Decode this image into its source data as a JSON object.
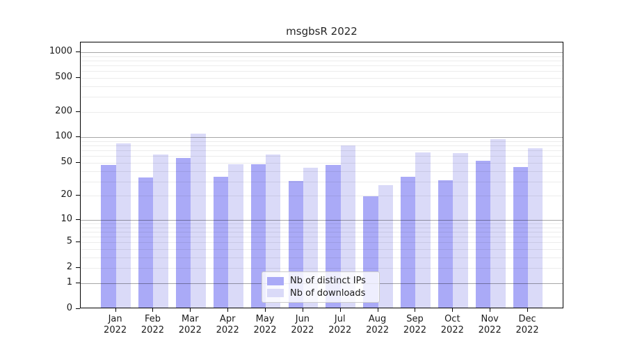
{
  "title": "msgbsR 2022",
  "chart_data": {
    "type": "bar",
    "categories": [
      "Jan",
      "Feb",
      "Mar",
      "Apr",
      "May",
      "Jun",
      "Jul",
      "Aug",
      "Sep",
      "Oct",
      "Nov",
      "Dec"
    ],
    "year": "2022",
    "series": [
      {
        "name": "Nb of distinct IPs",
        "color": "#aaaaf7",
        "values": [
          45,
          32,
          55,
          33,
          46,
          29,
          45,
          19,
          33,
          30,
          51,
          43
        ]
      },
      {
        "name": "Nb of downloads",
        "color": "#dadaf8",
        "values": [
          82,
          61,
          107,
          46,
          61,
          42,
          78,
          26,
          64,
          63,
          92,
          72
        ]
      }
    ],
    "yscale": "log1p",
    "ytick_values": [
      0,
      1,
      2,
      5,
      10,
      20,
      50,
      100,
      200,
      500,
      1000
    ],
    "ytick_labels": [
      "0",
      "1",
      "2",
      "5",
      "10",
      "20",
      "50",
      "100",
      "200",
      "500",
      "1000"
    ],
    "ylim": [
      0,
      1300
    ],
    "grid": true,
    "legend_position": "lower center"
  }
}
